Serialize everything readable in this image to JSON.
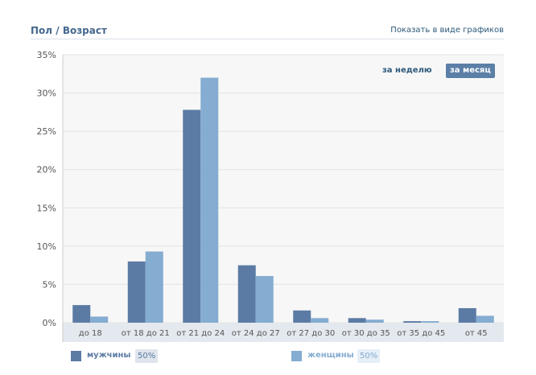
{
  "header": {
    "title": "Пол / Возраст",
    "view_link": "Показать в виде графиков"
  },
  "period_switch": {
    "week_label": "за неделю",
    "month_label": "за месяц",
    "active": "month"
  },
  "colors": {
    "men": "#5b7ba4",
    "women": "#85acd1",
    "plot_bg": "#f7f7f7",
    "axis_band": "#e4e9ef",
    "grid": "#e3e3e3",
    "text": "#45688e",
    "tick_text": "#555555",
    "share_bg": "#dee5ec"
  },
  "chart_data": {
    "type": "bar",
    "categories": [
      "до 18",
      "от 18 до 21",
      "от 21 до 24",
      "от 24 до 27",
      "от 27 до 30",
      "от 30 до 35",
      "от 35 до 45",
      "от 45"
    ],
    "series": [
      {
        "name": "мужчины",
        "values": [
          2.3,
          8.0,
          27.8,
          7.5,
          1.6,
          0.6,
          0.2,
          1.9
        ]
      },
      {
        "name": "женщины",
        "values": [
          0.8,
          9.3,
          32.0,
          6.1,
          0.6,
          0.4,
          0.2,
          0.9
        ]
      }
    ],
    "ylim": [
      0,
      35
    ],
    "yticks": [
      "0%",
      "5%",
      "10%",
      "15%",
      "20%",
      "25%",
      "30%",
      "35%"
    ],
    "grid": true,
    "legend": "bottom"
  },
  "legend": [
    {
      "label": "мужчины",
      "share": "50%",
      "icon": "square-swatch"
    },
    {
      "label": "женщины",
      "share": "50%",
      "icon": "square-swatch"
    }
  ]
}
